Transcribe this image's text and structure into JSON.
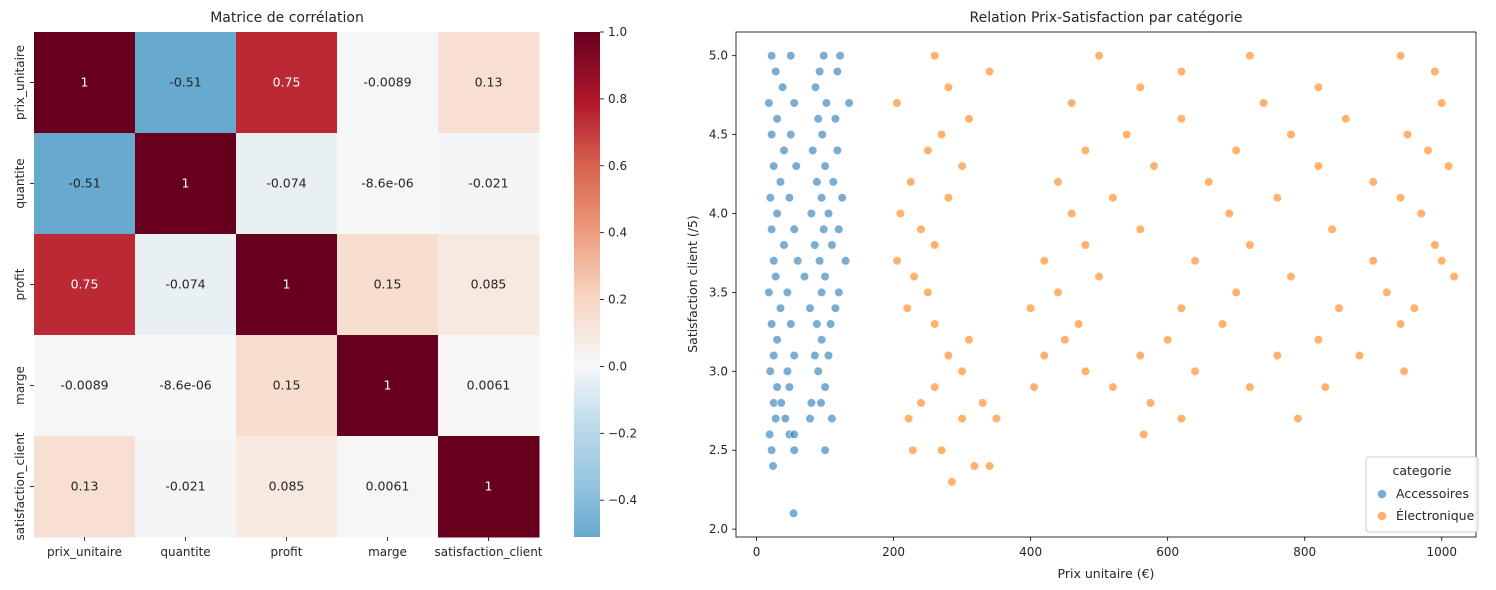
{
  "chart_data": [
    {
      "type": "heatmap",
      "title": "Matrice de corrélation",
      "labels": [
        "prix_unitaire",
        "quantite",
        "profit",
        "marge",
        "satisfaction_client"
      ],
      "values": [
        [
          1,
          -0.51,
          0.75,
          -0.0089,
          0.13
        ],
        [
          -0.51,
          1,
          -0.074,
          -8.6e-06,
          -0.021
        ],
        [
          0.75,
          -0.074,
          1,
          0.15,
          0.085
        ],
        [
          -0.0089,
          -8.6e-06,
          0.15,
          1,
          0.0061
        ],
        [
          0.13,
          -0.021,
          0.085,
          0.0061,
          1
        ]
      ],
      "annotations": [
        [
          "1",
          "-0.51",
          "0.75",
          "-0.0089",
          "0.13"
        ],
        [
          "-0.51",
          "1",
          "-0.074",
          "-8.6e-06",
          "-0.021"
        ],
        [
          "0.75",
          "-0.074",
          "1",
          "0.15",
          "0.085"
        ],
        [
          "-0.0089",
          "-8.6e-06",
          "0.15",
          "1",
          "0.0061"
        ],
        [
          "0.13",
          "-0.021",
          "0.085",
          "0.0061",
          "1"
        ]
      ],
      "colormap": "RdBu_r",
      "center": 0,
      "vmin": -0.51,
      "vmax": 1,
      "colorbar_ticks": [
        1.0,
        0.8,
        0.6,
        0.4,
        0.2,
        0.0,
        -0.2,
        -0.4
      ],
      "colorbar_tick_labels": [
        "1.0",
        "0.8",
        "0.6",
        "0.4",
        "0.2",
        "0.0",
        "−0.2",
        "−0.4"
      ]
    },
    {
      "type": "scatter",
      "title": "Relation Prix-Satisfaction par catégorie",
      "xlabel": "Prix unitaire (€)",
      "ylabel": "Satisfaction client (/5)",
      "xlim": [
        -30,
        1050
      ],
      "ylim": [
        1.95,
        5.15
      ],
      "xticks": [
        0,
        200,
        400,
        600,
        800,
        1000
      ],
      "yticks": [
        2.0,
        2.5,
        3.0,
        3.5,
        4.0,
        4.5,
        5.0
      ],
      "xtick_labels": [
        "0",
        "200",
        "400",
        "600",
        "800",
        "1000"
      ],
      "ytick_labels": [
        "2.0",
        "2.5",
        "3.0",
        "3.5",
        "4.0",
        "4.5",
        "5.0"
      ],
      "legend": {
        "title": "categorie",
        "placement": "lower-right"
      },
      "series": [
        {
          "name": "Accessoires",
          "color": "#1f77b4",
          "points": [
            [
              54,
              2.1
            ],
            [
              24,
              2.4
            ],
            [
              22,
              2.5
            ],
            [
              55,
              2.5
            ],
            [
              100,
              2.5
            ],
            [
              19,
              2.6
            ],
            [
              48,
              2.6
            ],
            [
              55,
              2.6
            ],
            [
              28,
              2.7
            ],
            [
              42,
              2.7
            ],
            [
              78,
              2.7
            ],
            [
              110,
              2.7
            ],
            [
              25,
              2.8
            ],
            [
              36,
              2.8
            ],
            [
              80,
              2.8
            ],
            [
              94,
              2.8
            ],
            [
              30,
              2.9
            ],
            [
              48,
              2.9
            ],
            [
              100,
              2.9
            ],
            [
              20,
              3.0
            ],
            [
              45,
              3.0
            ],
            [
              90,
              3.0
            ],
            [
              25,
              3.1
            ],
            [
              55,
              3.1
            ],
            [
              85,
              3.1
            ],
            [
              105,
              3.1
            ],
            [
              30,
              3.2
            ],
            [
              95,
              3.2
            ],
            [
              22,
              3.3
            ],
            [
              50,
              3.3
            ],
            [
              88,
              3.3
            ],
            [
              108,
              3.3
            ],
            [
              35,
              3.4
            ],
            [
              78,
              3.4
            ],
            [
              115,
              3.4
            ],
            [
              18,
              3.5
            ],
            [
              45,
              3.5
            ],
            [
              95,
              3.5
            ],
            [
              120,
              3.5
            ],
            [
              28,
              3.6
            ],
            [
              70,
              3.6
            ],
            [
              100,
              3.6
            ],
            [
              25,
              3.7
            ],
            [
              60,
              3.7
            ],
            [
              92,
              3.7
            ],
            [
              130,
              3.7
            ],
            [
              40,
              3.8
            ],
            [
              85,
              3.8
            ],
            [
              110,
              3.8
            ],
            [
              22,
              3.9
            ],
            [
              55,
              3.9
            ],
            [
              98,
              3.9
            ],
            [
              120,
              3.9
            ],
            [
              30,
              4.0
            ],
            [
              80,
              4.0
            ],
            [
              105,
              4.0
            ],
            [
              20,
              4.1
            ],
            [
              48,
              4.1
            ],
            [
              95,
              4.1
            ],
            [
              125,
              4.1
            ],
            [
              35,
              4.2
            ],
            [
              88,
              4.2
            ],
            [
              112,
              4.2
            ],
            [
              25,
              4.3
            ],
            [
              58,
              4.3
            ],
            [
              100,
              4.3
            ],
            [
              40,
              4.4
            ],
            [
              82,
              4.4
            ],
            [
              118,
              4.4
            ],
            [
              22,
              4.5
            ],
            [
              50,
              4.5
            ],
            [
              96,
              4.5
            ],
            [
              30,
              4.6
            ],
            [
              90,
              4.6
            ],
            [
              115,
              4.6
            ],
            [
              18,
              4.7
            ],
            [
              55,
              4.7
            ],
            [
              102,
              4.7
            ],
            [
              135,
              4.7
            ],
            [
              38,
              4.8
            ],
            [
              86,
              4.8
            ],
            [
              28,
              4.9
            ],
            [
              92,
              4.9
            ],
            [
              118,
              4.9
            ],
            [
              22,
              5.0
            ],
            [
              50,
              5.0
            ],
            [
              98,
              5.0
            ],
            [
              122,
              5.0
            ]
          ]
        },
        {
          "name": "Électronique",
          "color": "#ff7f0e",
          "points": [
            [
              285,
              2.3
            ],
            [
              228,
              2.5
            ],
            [
              270,
              2.5
            ],
            [
              318,
              2.4
            ],
            [
              340,
              2.4
            ],
            [
              565,
              2.6
            ],
            [
              222,
              2.7
            ],
            [
              300,
              2.7
            ],
            [
              350,
              2.7
            ],
            [
              620,
              2.7
            ],
            [
              790,
              2.7
            ],
            [
              240,
              2.8
            ],
            [
              330,
              2.8
            ],
            [
              575,
              2.8
            ],
            [
              260,
              2.9
            ],
            [
              405,
              2.9
            ],
            [
              520,
              2.9
            ],
            [
              720,
              2.9
            ],
            [
              830,
              2.9
            ],
            [
              300,
              3.0
            ],
            [
              480,
              3.0
            ],
            [
              640,
              3.0
            ],
            [
              945,
              3.0
            ],
            [
              280,
              3.1
            ],
            [
              420,
              3.1
            ],
            [
              560,
              3.1
            ],
            [
              760,
              3.1
            ],
            [
              880,
              3.1
            ],
            [
              310,
              3.2
            ],
            [
              450,
              3.2
            ],
            [
              600,
              3.2
            ],
            [
              820,
              3.2
            ],
            [
              260,
              3.3
            ],
            [
              470,
              3.3
            ],
            [
              680,
              3.3
            ],
            [
              940,
              3.3
            ],
            [
              220,
              3.4
            ],
            [
              400,
              3.4
            ],
            [
              620,
              3.4
            ],
            [
              850,
              3.4
            ],
            [
              960,
              3.4
            ],
            [
              250,
              3.5
            ],
            [
              440,
              3.5
            ],
            [
              700,
              3.5
            ],
            [
              920,
              3.5
            ],
            [
              230,
              3.6
            ],
            [
              500,
              3.6
            ],
            [
              780,
              3.6
            ],
            [
              1018,
              3.6
            ],
            [
              205,
              3.7
            ],
            [
              420,
              3.7
            ],
            [
              640,
              3.7
            ],
            [
              900,
              3.7
            ],
            [
              1000,
              3.7
            ],
            [
              260,
              3.8
            ],
            [
              480,
              3.8
            ],
            [
              720,
              3.8
            ],
            [
              990,
              3.8
            ],
            [
              240,
              3.9
            ],
            [
              560,
              3.9
            ],
            [
              840,
              3.9
            ],
            [
              210,
              4.0
            ],
            [
              460,
              4.0
            ],
            [
              690,
              4.0
            ],
            [
              970,
              4.0
            ],
            [
              280,
              4.1
            ],
            [
              520,
              4.1
            ],
            [
              760,
              4.1
            ],
            [
              940,
              4.1
            ],
            [
              225,
              4.2
            ],
            [
              440,
              4.2
            ],
            [
              660,
              4.2
            ],
            [
              900,
              4.2
            ],
            [
              300,
              4.3
            ],
            [
              580,
              4.3
            ],
            [
              820,
              4.3
            ],
            [
              1010,
              4.3
            ],
            [
              250,
              4.4
            ],
            [
              480,
              4.4
            ],
            [
              700,
              4.4
            ],
            [
              980,
              4.4
            ],
            [
              270,
              4.5
            ],
            [
              540,
              4.5
            ],
            [
              780,
              4.5
            ],
            [
              950,
              4.5
            ],
            [
              310,
              4.6
            ],
            [
              620,
              4.6
            ],
            [
              860,
              4.6
            ],
            [
              205,
              4.7
            ],
            [
              460,
              4.7
            ],
            [
              740,
              4.7
            ],
            [
              1000,
              4.7
            ],
            [
              280,
              4.8
            ],
            [
              560,
              4.8
            ],
            [
              820,
              4.8
            ],
            [
              340,
              4.9
            ],
            [
              620,
              4.9
            ],
            [
              990,
              4.9
            ],
            [
              260,
              5.0
            ],
            [
              500,
              5.0
            ],
            [
              720,
              5.0
            ],
            [
              940,
              5.0
            ]
          ]
        }
      ]
    }
  ]
}
